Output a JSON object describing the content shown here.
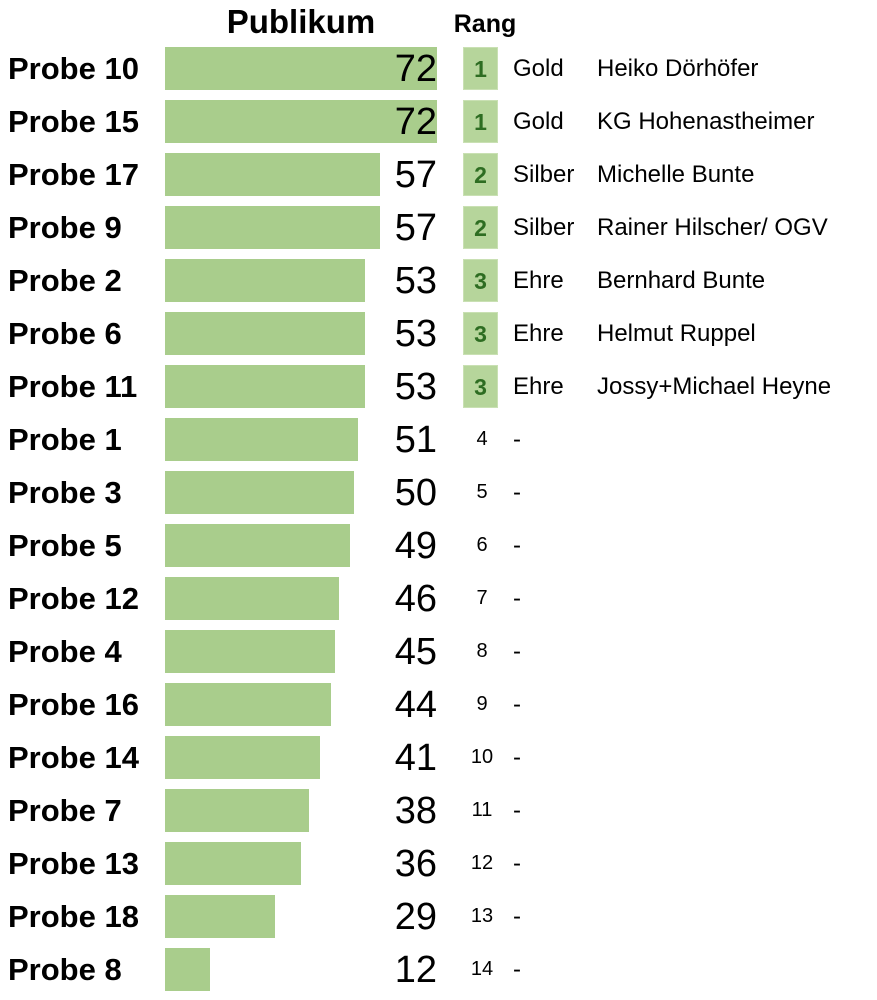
{
  "title": "Publikum",
  "rank_header": "Rang",
  "colors": {
    "bar": "#a9cd8c",
    "rank_badge_bg": "#b6d59b",
    "rank_badge_border": "#c9e0b3",
    "rank_badge_text": "#2e6d22",
    "text": "#000000"
  },
  "chart_data": {
    "type": "bar",
    "orientation": "horizontal",
    "title": "Publikum",
    "xlabel": "",
    "ylabel": "",
    "value_axis_max": 72,
    "grid": false,
    "legend": false,
    "categories": [
      "Probe 10",
      "Probe 15",
      "Probe 17",
      "Probe 9",
      "Probe 2",
      "Probe 6",
      "Probe 11",
      "Probe 1",
      "Probe 3",
      "Probe 5",
      "Probe 12",
      "Probe 4",
      "Probe 16",
      "Probe 14",
      "Probe 7",
      "Probe 13",
      "Probe 18",
      "Probe 8"
    ],
    "values": [
      72,
      72,
      57,
      57,
      53,
      53,
      53,
      51,
      50,
      49,
      46,
      45,
      44,
      41,
      38,
      36,
      29,
      12
    ],
    "rows": [
      {
        "label": "Probe 10",
        "value": 72,
        "rank": 1,
        "medal": "Gold",
        "name": "Heiko Dörhöfer"
      },
      {
        "label": "Probe 15",
        "value": 72,
        "rank": 1,
        "medal": "Gold",
        "name": "KG Hohenastheimer"
      },
      {
        "label": "Probe 17",
        "value": 57,
        "rank": 2,
        "medal": "Silber",
        "name": "Michelle Bunte"
      },
      {
        "label": "Probe 9",
        "value": 57,
        "rank": 2,
        "medal": "Silber",
        "name": "Rainer Hilscher/ OGV"
      },
      {
        "label": "Probe 2",
        "value": 53,
        "rank": 3,
        "medal": "Ehre",
        "name": "Bernhard Bunte"
      },
      {
        "label": "Probe 6",
        "value": 53,
        "rank": 3,
        "medal": "Ehre",
        "name": "Helmut Ruppel"
      },
      {
        "label": "Probe 11",
        "value": 53,
        "rank": 3,
        "medal": "Ehre",
        "name": "Jossy+Michael Heyne"
      },
      {
        "label": "Probe 1",
        "value": 51,
        "rank": 4,
        "medal": "-",
        "name": ""
      },
      {
        "label": "Probe 3",
        "value": 50,
        "rank": 5,
        "medal": "-",
        "name": ""
      },
      {
        "label": "Probe 5",
        "value": 49,
        "rank": 6,
        "medal": "-",
        "name": ""
      },
      {
        "label": "Probe 12",
        "value": 46,
        "rank": 7,
        "medal": "-",
        "name": ""
      },
      {
        "label": "Probe 4",
        "value": 45,
        "rank": 8,
        "medal": "-",
        "name": ""
      },
      {
        "label": "Probe 16",
        "value": 44,
        "rank": 9,
        "medal": "-",
        "name": ""
      },
      {
        "label": "Probe 14",
        "value": 41,
        "rank": 10,
        "medal": "-",
        "name": ""
      },
      {
        "label": "Probe 7",
        "value": 38,
        "rank": 11,
        "medal": "-",
        "name": ""
      },
      {
        "label": "Probe 13",
        "value": 36,
        "rank": 12,
        "medal": "-",
        "name": ""
      },
      {
        "label": "Probe 18",
        "value": 29,
        "rank": 13,
        "medal": "-",
        "name": ""
      },
      {
        "label": "Probe 8",
        "value": 12,
        "rank": 14,
        "medal": "-",
        "name": ""
      }
    ]
  }
}
